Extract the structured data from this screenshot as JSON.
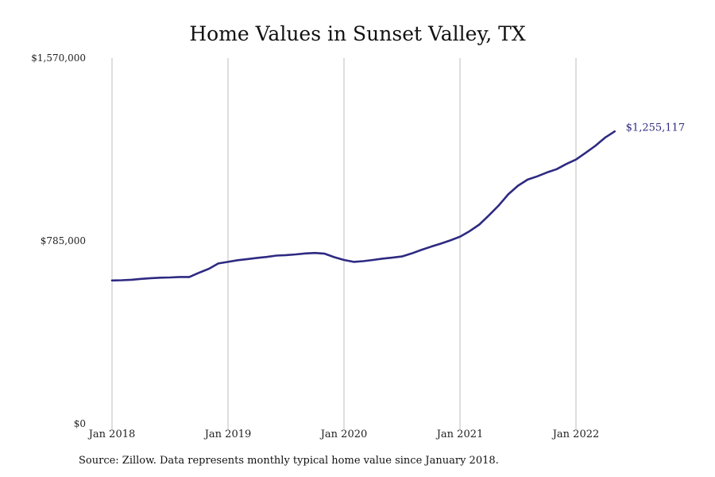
{
  "chart_data": {
    "type": "line",
    "title": "Home Values in Sunset Valley, TX",
    "footnote": "Source: Zillow. Data represents monthly typical home value since January 2018.",
    "xlabel": "",
    "ylabel": "",
    "ylim": [
      0,
      1570000
    ],
    "ytick_values": [
      0,
      785000,
      1570000
    ],
    "ytick_labels": [
      "$0",
      "$785,000",
      "$1,570,000"
    ],
    "xtick_labels": [
      "Jan 2018",
      "Jan 2019",
      "Jan 2020",
      "Jan 2021",
      "Jan 2022"
    ],
    "xtick_dates": [
      "2018-01",
      "2019-01",
      "2020-01",
      "2021-01",
      "2022-01"
    ],
    "grid": "vertical",
    "line_color": "#2e2a82",
    "end_label": "$1,255,117",
    "x": [
      "2018-01",
      "2018-02",
      "2018-03",
      "2018-04",
      "2018-05",
      "2018-06",
      "2018-07",
      "2018-08",
      "2018-09",
      "2018-10",
      "2018-11",
      "2018-12",
      "2019-01",
      "2019-02",
      "2019-03",
      "2019-04",
      "2019-05",
      "2019-06",
      "2019-07",
      "2019-08",
      "2019-09",
      "2019-10",
      "2019-11",
      "2019-12",
      "2020-01",
      "2020-02",
      "2020-03",
      "2020-04",
      "2020-05",
      "2020-06",
      "2020-07",
      "2020-08",
      "2020-09",
      "2020-10",
      "2020-11",
      "2020-12",
      "2021-01",
      "2021-02",
      "2021-03",
      "2021-04",
      "2021-05",
      "2021-06",
      "2021-07",
      "2021-08",
      "2021-09",
      "2021-10",
      "2021-11",
      "2021-12",
      "2022-01",
      "2022-02",
      "2022-03",
      "2022-04",
      "2022-05"
    ],
    "values": [
      615000,
      616000,
      618000,
      622000,
      625000,
      627000,
      628000,
      630000,
      630000,
      648000,
      665000,
      688000,
      695000,
      702000,
      707000,
      712000,
      716000,
      722000,
      724000,
      727000,
      731000,
      733000,
      730000,
      715000,
      703000,
      695000,
      698000,
      703000,
      709000,
      713000,
      718000,
      731000,
      746000,
      760000,
      773000,
      787000,
      803000,
      827000,
      855000,
      895000,
      937000,
      985000,
      1022000,
      1048000,
      1062000,
      1079000,
      1093000,
      1115000,
      1134000,
      1163000,
      1193000,
      1228000,
      1255117
    ]
  }
}
